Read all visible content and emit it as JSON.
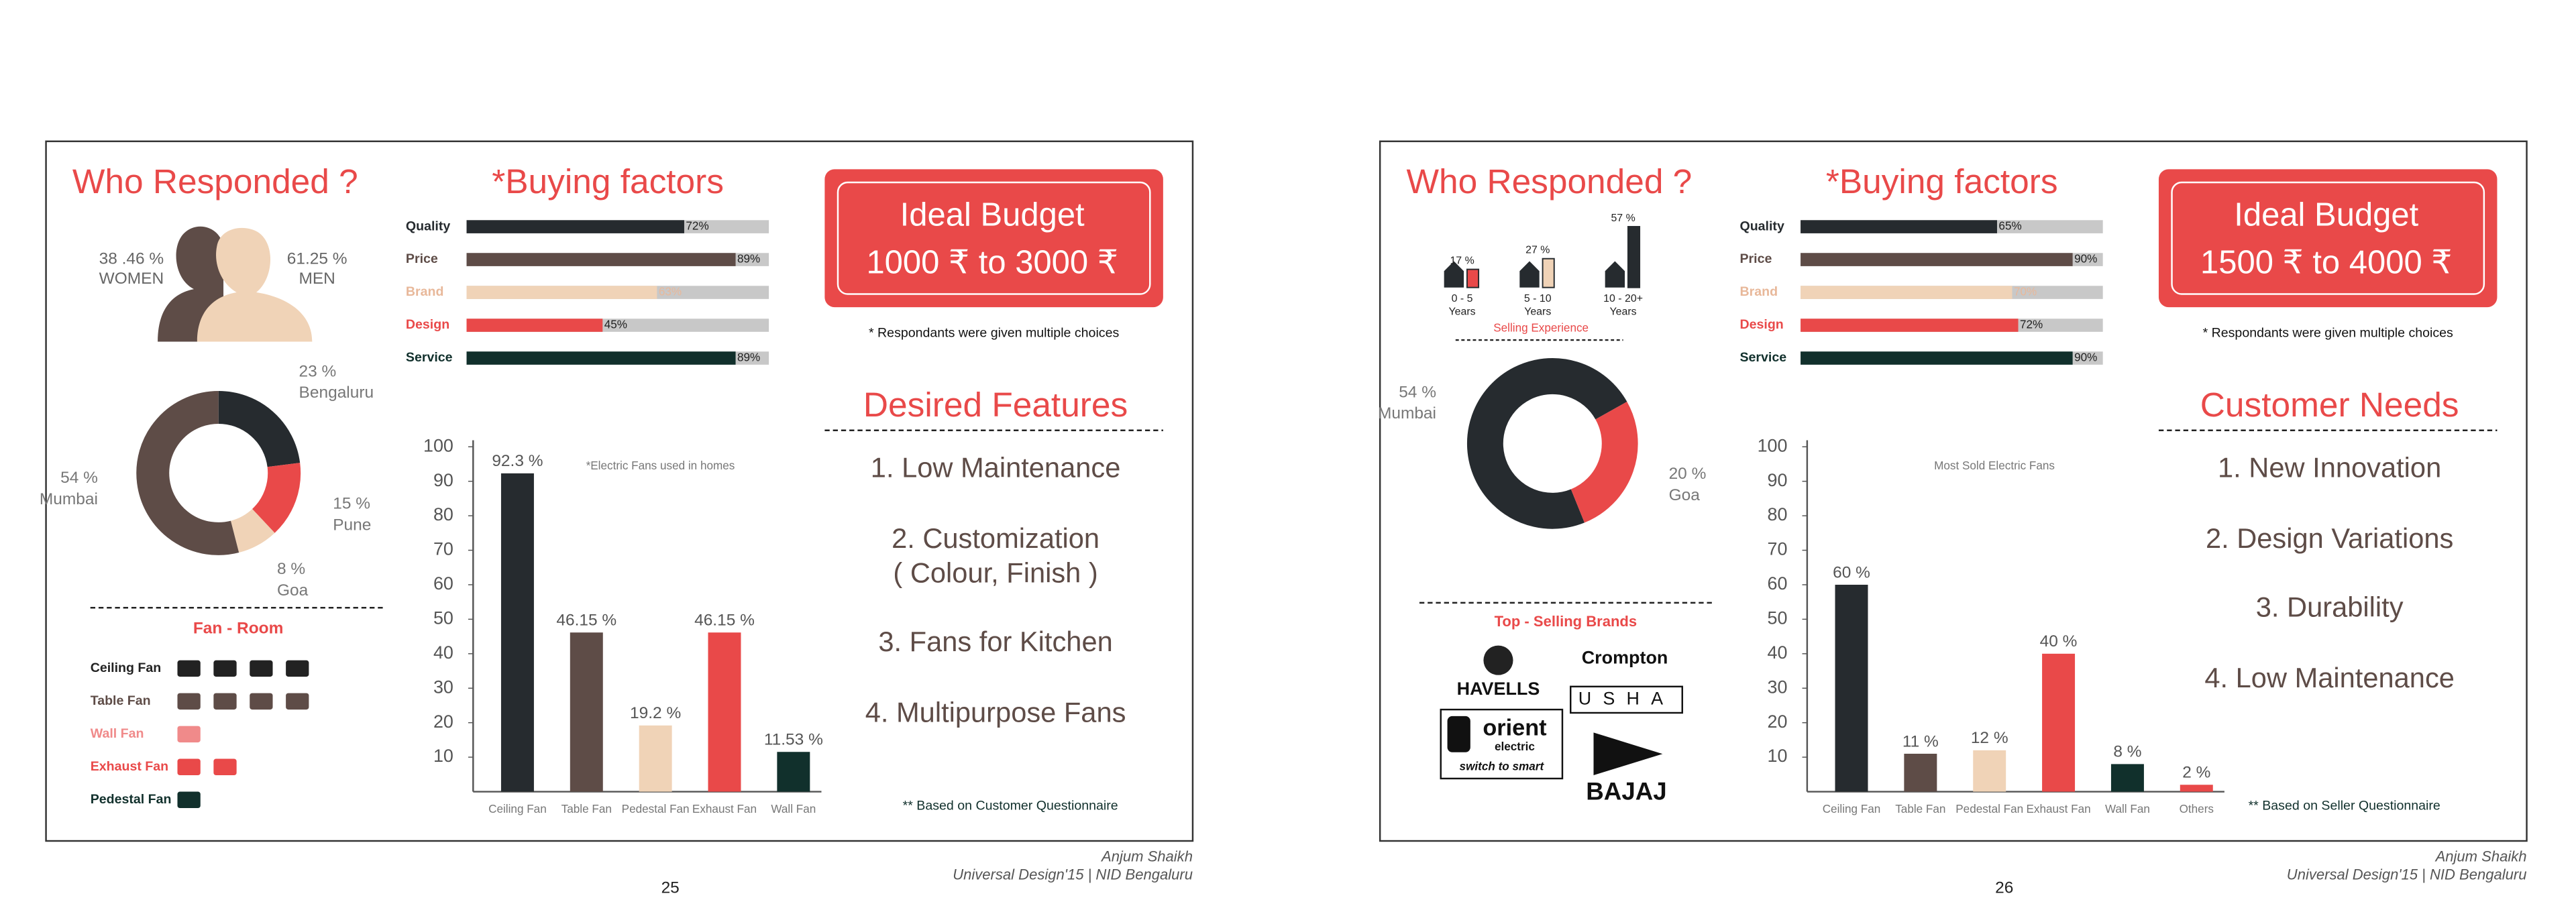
{
  "pages": [
    {
      "who_title": "Who Responded ?",
      "gender": {
        "women_share": "38 .46 %",
        "women": "WOMEN",
        "men_share": "61.25 %",
        "men": "MEN"
      },
      "city_chart": {
        "type": "pie",
        "categories": [
          "Bengaluru",
          "Pune",
          "Goa",
          "Mumbai"
        ],
        "values": [
          23,
          15,
          8,
          54
        ],
        "value_labels": [
          "23 %",
          "15 %",
          "8 %",
          "54 %"
        ],
        "colors": [
          "#262b2f",
          "#e94949",
          "#f0d3b7",
          "#5e4c47"
        ]
      },
      "fan_room": {
        "title": "Fan - Room",
        "rows": [
          {
            "label": "Ceiling Fan",
            "color": "#222222"
          },
          {
            "label": "Table Fan",
            "color": "#5e4c47"
          },
          {
            "label": "Wall Fan",
            "color": "#f08a8a"
          },
          {
            "label": "Exhaust Fan",
            "color": "#e94949"
          },
          {
            "label": "Pedestal Fan",
            "color": "#11302c"
          }
        ]
      },
      "buying": {
        "type": "bar",
        "title": "*Buying factors",
        "categories": [
          "Quality",
          "Price",
          "Brand",
          "Design",
          "Service"
        ],
        "values": [
          72,
          89,
          63,
          45,
          89
        ],
        "value_labels": [
          "72%",
          "89%",
          "63%",
          "45%",
          "89%"
        ],
        "colors": [
          "#262b2f",
          "#5e4c47",
          "#f0d3b7",
          "#e94949",
          "#11302c"
        ],
        "xlim": [
          0,
          100
        ]
      },
      "budget": {
        "title": "Ideal Budget",
        "range": "1000 ₹ to 3000 ₹",
        "note": "* Respondants were given multiple choices"
      },
      "list": {
        "title": "Desired Features",
        "items": [
          [
            "1. Low Maintenance"
          ],
          [
            "2. Customization",
            "( Colour, Finish )"
          ],
          [
            "3. Fans for Kitchen"
          ],
          [
            "4. Multipurpose Fans"
          ]
        ]
      },
      "fan_chart": {
        "type": "bar",
        "note": "*Electric Fans used in homes",
        "categories": [
          "Ceiling Fan",
          "Table Fan",
          "Pedestal Fan",
          "Exhaust Fan",
          "Wall Fan"
        ],
        "values": [
          92.3,
          46.15,
          19.2,
          46.15,
          11.53
        ],
        "value_labels": [
          "92.3 %",
          "46.15 %",
          "19.2 %",
          "46.15 %",
          "11.53 %"
        ],
        "colors": [
          "#262b2f",
          "#5e4c47",
          "#f0d3b7",
          "#e94949",
          "#11302c"
        ],
        "ylim": [
          0,
          100
        ],
        "yticks": [
          10,
          20,
          30,
          40,
          50,
          60,
          70,
          80,
          90,
          100
        ]
      },
      "source": "** Based on Customer Questionnaire",
      "footer": {
        "author": "Anjum Shaikh",
        "course": "Universal Design'15 | NID Bengaluru",
        "page": 25
      }
    },
    {
      "who_title": "Who Responded ?",
      "experience": {
        "type": "bar",
        "title": "Selling Experience",
        "categories": [
          [
            "0 - 5",
            "Years"
          ],
          [
            "5 - 10",
            "Years"
          ],
          [
            "10 - 20+",
            "Years"
          ]
        ],
        "values": [
          17,
          27,
          57
        ],
        "value_labels": [
          "17 %",
          "27 %",
          "57 %"
        ],
        "colors": [
          "#e94949",
          "#f0d3b7",
          "#262b2f"
        ]
      },
      "city_chart": {
        "type": "pie",
        "categories": [
          "Mumbai",
          "Goa"
        ],
        "values": [
          54,
          20
        ],
        "value_labels": [
          "54 %",
          "20 %"
        ],
        "colors": [
          "#262b2f",
          "#e94949"
        ]
      },
      "brands": {
        "title": "Top - Selling Brands",
        "items": [
          {
            "name": "HAVELLS"
          },
          {
            "name": "Crompton"
          },
          {
            "name": "USHA"
          },
          {
            "name": "orient",
            "sub": "electric",
            "tagline": "switch to smart"
          },
          {
            "name": "BAJAJ"
          }
        ]
      },
      "buying": {
        "type": "bar",
        "title": "*Buying factors",
        "categories": [
          "Quality",
          "Price",
          "Brand",
          "Design",
          "Service"
        ],
        "values": [
          65,
          90,
          70,
          72,
          90
        ],
        "value_labels": [
          "65%",
          "90%",
          "70%",
          "72%",
          "90%"
        ],
        "colors": [
          "#262b2f",
          "#5e4c47",
          "#f0d3b7",
          "#e94949",
          "#11302c"
        ],
        "xlim": [
          0,
          100
        ]
      },
      "budget": {
        "title": "Ideal Budget",
        "range": "1500 ₹ to 4000 ₹",
        "note": "* Respondants were given multiple choices"
      },
      "list": {
        "title": "Customer Needs",
        "items": [
          [
            "1. New Innovation"
          ],
          [
            "2. Design Variations"
          ],
          [
            "3. Durability"
          ],
          [
            "4. Low Maintenance"
          ]
        ]
      },
      "fan_chart": {
        "type": "bar",
        "note": "Most Sold Electric Fans",
        "categories": [
          "Ceiling Fan",
          "Table Fan",
          "Pedestal Fan",
          "Exhaust Fan",
          "Wall Fan",
          "Others"
        ],
        "values": [
          60,
          11,
          12,
          40,
          8,
          2
        ],
        "value_labels": [
          "60 %",
          "11 %",
          "12 %",
          "40 %",
          "8 %",
          "2 %"
        ],
        "colors": [
          "#262b2f",
          "#5e4c47",
          "#f0d3b7",
          "#e94949",
          "#11302c",
          "#e94949"
        ],
        "ylim": [
          0,
          100
        ],
        "yticks": [
          10,
          20,
          30,
          40,
          50,
          60,
          70,
          80,
          90,
          100
        ]
      },
      "source": "** Based on Seller Questionnaire",
      "footer": {
        "author": "Anjum Shaikh",
        "course": "Universal Design'15 | NID Bengaluru",
        "page": 26
      }
    }
  ]
}
